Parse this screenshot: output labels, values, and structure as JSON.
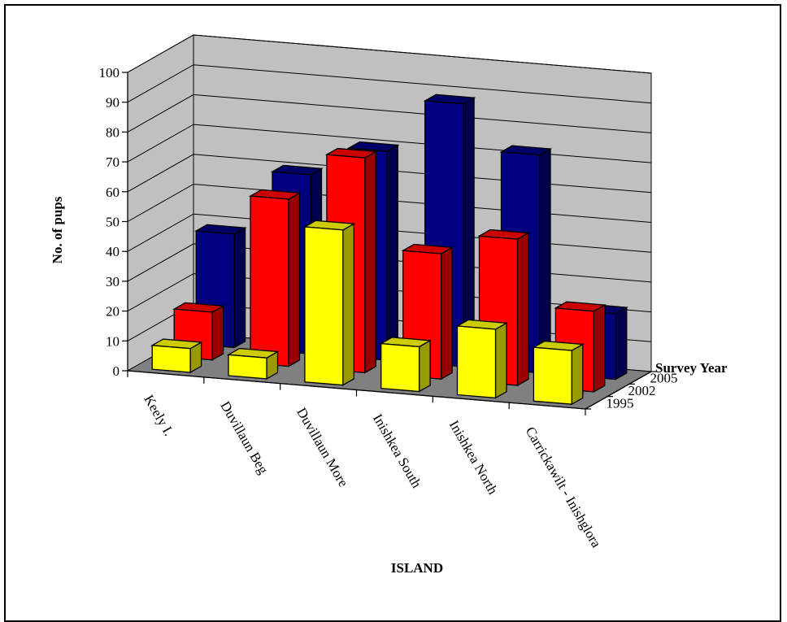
{
  "chart_data": {
    "type": "bar",
    "variant": "3d-clustered-depth",
    "title": "",
    "xlabel": "ISLAND",
    "ylabel": "No. of pups",
    "zlabel": "Survey Year",
    "ylim": [
      0,
      100
    ],
    "yticks": [
      "0",
      "10",
      "20",
      "30",
      "40",
      "50",
      "60",
      "70",
      "80",
      "90",
      "100"
    ],
    "categories": [
      "Keely I.",
      "Duvillaun Beg",
      "Duvillaun More",
      "Inishkea South",
      "Inishkea North",
      "Carrickawilt - Inishglora"
    ],
    "series": [
      {
        "name": "1995",
        "color": "#ffff00",
        "values": [
          8,
          7,
          52,
          15,
          23,
          18
        ]
      },
      {
        "name": "2002",
        "color": "#ff0000",
        "values": [
          16,
          56,
          72,
          42,
          49,
          27
        ]
      },
      {
        "name": "2005",
        "color": "#000080",
        "values": [
          38,
          60,
          70,
          88,
          73,
          22
        ]
      }
    ],
    "grid": true,
    "wall_color": "#c0c0c0",
    "floor_color": "#808080"
  }
}
